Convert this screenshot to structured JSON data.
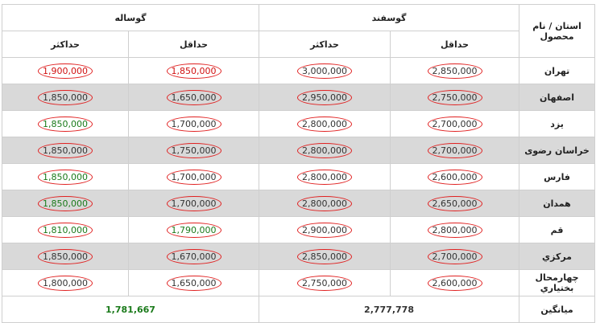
{
  "table": {
    "header": {
      "corner": "استان / نام محصول",
      "groups": [
        "گوسفند",
        "گوساله"
      ],
      "sub": [
        "حداقل",
        "حداکثر",
        "حداقل",
        "حداکثر"
      ]
    },
    "rows": [
      {
        "province": "تهران",
        "values": [
          "2,850,000",
          "3,000,000",
          "1,850,000",
          "1,900,000"
        ],
        "colors": [
          "dark",
          "dark",
          "red",
          "red"
        ]
      },
      {
        "province": "اصفهان",
        "values": [
          "2,750,000",
          "2,950,000",
          "1,650,000",
          "1,850,000"
        ],
        "colors": [
          "dark",
          "dark",
          "dark",
          "dark"
        ]
      },
      {
        "province": "یزد",
        "values": [
          "2,700,000",
          "2,800,000",
          "1,700,000",
          "1,850,000"
        ],
        "colors": [
          "dark",
          "dark",
          "dark",
          "green"
        ]
      },
      {
        "province": "خراسان رضوی",
        "values": [
          "2,700,000",
          "2,800,000",
          "1,750,000",
          "1,850,000"
        ],
        "colors": [
          "dark",
          "dark",
          "dark",
          "dark"
        ]
      },
      {
        "province": "فارس",
        "values": [
          "2,600,000",
          "2,800,000",
          "1,700,000",
          "1,850,000"
        ],
        "colors": [
          "dark",
          "dark",
          "dark",
          "green"
        ]
      },
      {
        "province": "همدان",
        "values": [
          "2,650,000",
          "2,800,000",
          "1,700,000",
          "1,850,000"
        ],
        "colors": [
          "dark",
          "dark",
          "dark",
          "green"
        ]
      },
      {
        "province": "قم",
        "values": [
          "2,800,000",
          "2,900,000",
          "1,790,000",
          "1,810,000"
        ],
        "colors": [
          "dark",
          "dark",
          "green",
          "green"
        ]
      },
      {
        "province": "مرکزي",
        "values": [
          "2,700,000",
          "2,850,000",
          "1,670,000",
          "1,850,000"
        ],
        "colors": [
          "dark",
          "dark",
          "dark",
          "dark"
        ]
      },
      {
        "province": "چهارمحال بختياري",
        "values": [
          "2,600,000",
          "2,750,000",
          "1,650,000",
          "1,800,000"
        ],
        "colors": [
          "dark",
          "dark",
          "dark",
          "dark"
        ]
      }
    ],
    "average": {
      "label": "میانگین",
      "values": [
        "2,777,778",
        "1,781,667"
      ],
      "colors": [
        "dark",
        "green"
      ]
    }
  }
}
